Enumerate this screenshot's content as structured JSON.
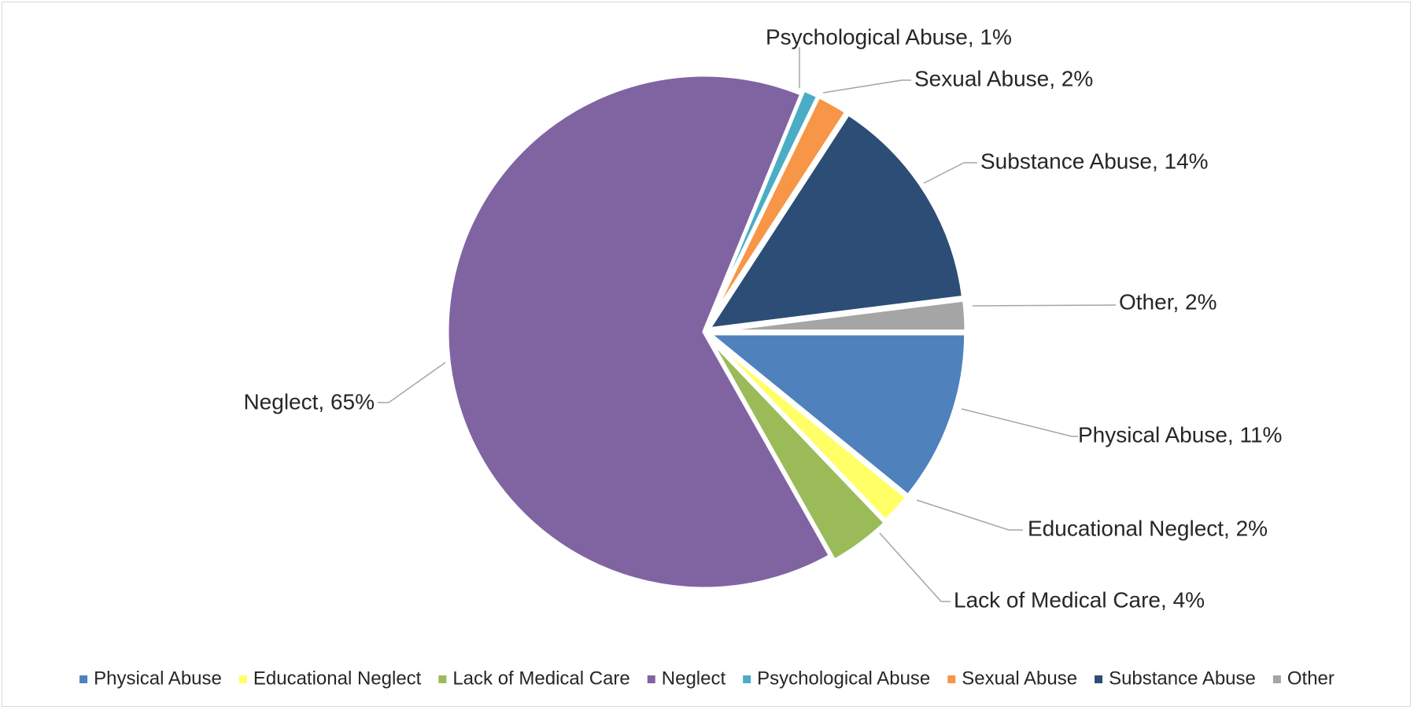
{
  "chart_data": {
    "type": "pie",
    "title": "",
    "slices": [
      {
        "name": "Physical Abuse",
        "value": 11,
        "label": "Physical Abuse, 11%",
        "color": "#4f81bd"
      },
      {
        "name": "Educational Neglect",
        "value": 2,
        "label": "Educational Neglect, 2%",
        "color": "#ffff66"
      },
      {
        "name": "Lack of Medical Care",
        "value": 4,
        "label": "Lack of Medical Care, 4%",
        "color": "#9bbb59"
      },
      {
        "name": "Neglect",
        "value": 65,
        "label": "Neglect, 65%",
        "color": "#8064a2"
      },
      {
        "name": "Psychological Abuse",
        "value": 1,
        "label": "Psychological Abuse, 1%",
        "color": "#4bacc6"
      },
      {
        "name": "Sexual Abuse",
        "value": 2,
        "label": "Sexual Abuse, 2%",
        "color": "#f79646"
      },
      {
        "name": "Substance Abuse",
        "value": 14,
        "label": "Substance Abuse, 14%",
        "color": "#2c4d75"
      },
      {
        "name": "Other",
        "value": 2,
        "label": "Other, 2%",
        "color": "#a5a5a5"
      }
    ],
    "legend_position": "bottom"
  }
}
